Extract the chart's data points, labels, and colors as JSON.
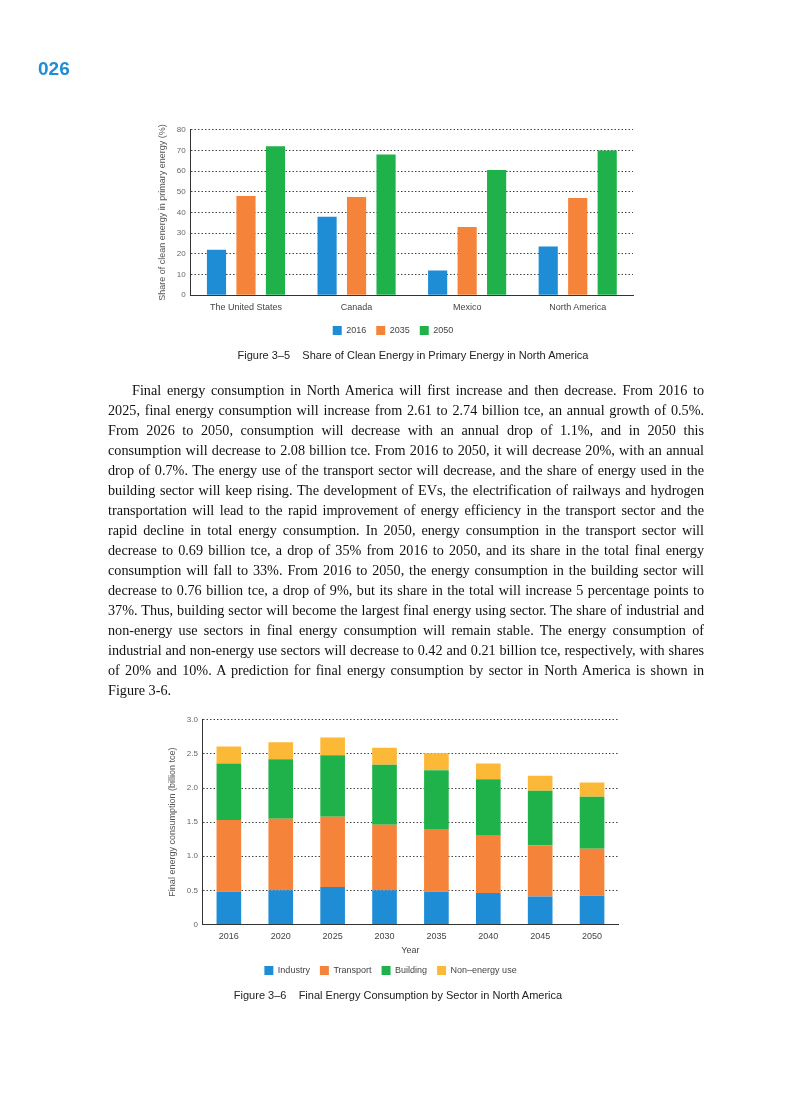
{
  "chart_data": [
    {
      "type": "bar",
      "title": "Figure 3–5    Share of Clean Energy in Primary Energy in North America",
      "ylabel": "Share of clean energy in primary energy (%)",
      "annotations": [
        "026"
      ],
      "categories": [
        "The United States",
        "Canada",
        "Mexico",
        "North America"
      ],
      "series": [
        {
          "name": "2016",
          "color": "#1f8dd6",
          "values": [
            22,
            38,
            12,
            23.5
          ]
        },
        {
          "name": "2035",
          "color": "#f5843a",
          "values": [
            48,
            47.5,
            33,
            47
          ]
        },
        {
          "name": "2050",
          "color": "#20b24a",
          "values": [
            72,
            68,
            60.5,
            70
          ]
        }
      ],
      "ylim": [
        0,
        80
      ],
      "yticks": [
        0,
        10,
        20,
        30,
        40,
        50,
        60,
        70,
        80
      ],
      "grid": "y",
      "legend": "bottom"
    },
    {
      "type": "bar",
      "stacked": true,
      "title": "Figure 3–6    Final Energy Consumption by Sector in North America",
      "xlabel": "Year",
      "ylabel": "Final energy consumption (billion tce)",
      "annotations": [
        "Final energy consumption in North America will first increase and then decrease. From 2016 to 2025, final energy consumption will increase from 2.61 to 2.74 billion tce, an annual growth of 0.5%. From 2026 to 2050, consumption will decrease with an annual drop of 1.1%, and in 2050 this consumption will decrease to 2.08 billion tce. From 2016 to 2050, it will decrease 20%, with an annual drop of 0.7%. The energy use of the transport sector will decrease, and the share of energy used in the building sector will keep rising. The development of EVs, the electrification of railways and hydrogen transportation will lead to the rapid improvement of energy efficiency in the transport sector and the rapid decline in total energy consumption. In 2050, energy consumption in the transport sector will decrease to 0.69 billion tce, a drop of 35% from 2016 to 2050, and its share in the total final energy consumption will fall to 33%. From 2016 to 2050, the energy consumption in the building sector will decrease to 0.76 billion tce, a drop of 9%, but its share in the total will increase 5 percentage points to 37%. Thus, building sector will become the largest final energy using sector. The share of industrial and non-energy use sectors in final energy consumption will remain stable. The energy consumption of industrial and non-energy use sectors will decrease to 0.42 and 0.21 billion tce, respectively, with shares of 20% and 10%. A prediction for final energy consumption by sector in North America is shown in Figure 3-6."
      ],
      "categories": [
        "2016",
        "2020",
        "2025",
        "2030",
        "2035",
        "2040",
        "2045",
        "2050"
      ],
      "series": [
        {
          "name": "Industry",
          "color": "#1f8dd6",
          "values": [
            0.48,
            0.5,
            0.55,
            0.5,
            0.48,
            0.46,
            0.41,
            0.42
          ]
        },
        {
          "name": "Transport",
          "color": "#f5843a",
          "values": [
            1.05,
            1.05,
            1.03,
            0.96,
            0.92,
            0.84,
            0.75,
            0.69
          ]
        },
        {
          "name": "Building",
          "color": "#20b24a",
          "values": [
            0.83,
            0.87,
            0.9,
            0.88,
            0.86,
            0.83,
            0.8,
            0.76
          ]
        },
        {
          "name": "Non–energy use",
          "color": "#fbb937",
          "values": [
            0.25,
            0.25,
            0.26,
            0.25,
            0.25,
            0.23,
            0.22,
            0.21
          ]
        }
      ],
      "ylim": [
        0,
        3
      ],
      "yticks": [
        {
          "value": 0,
          "label": "0"
        },
        {
          "value": 0.5,
          "label": "0.5"
        },
        {
          "value": 1,
          "label": "1.0"
        },
        {
          "value": 1.5,
          "label": "1.5"
        },
        {
          "value": 2,
          "label": "2.0"
        },
        {
          "value": 2.5,
          "label": "2.5"
        },
        {
          "value": 3,
          "label": "3.0"
        }
      ],
      "grid": "y",
      "legend": "bottom"
    }
  ]
}
